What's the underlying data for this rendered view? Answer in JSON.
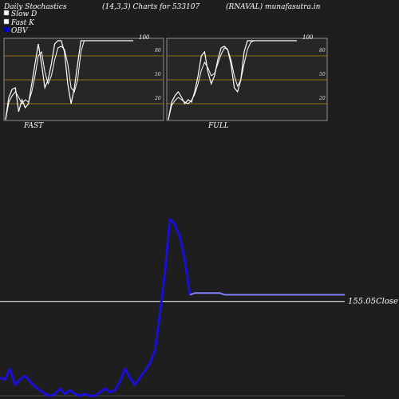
{
  "header": {
    "left": "Daily Stochastics",
    "middle": "(14,3,3) Charts for 533107",
    "right": "(RNAVAL) munafasutra.in"
  },
  "legend": [
    {
      "label": "Slow  D",
      "color": "#ffffff"
    },
    {
      "label": "Fast K",
      "color": "#ffffff"
    },
    {
      "label": "OBV",
      "color": "#0000cc"
    }
  ],
  "colors": {
    "background": "#1e1e1e",
    "panel": "#2a2a2a",
    "band_line": "#b8860b",
    "stoch_line": "#ffffff",
    "obv_line": "#1a0fd6",
    "close_line": "#ffffff",
    "close_marker": "#8080ff"
  },
  "chart_data": [
    {
      "type": "line",
      "name": "FAST",
      "panel_label": "FAST",
      "ylim": [
        0,
        100
      ],
      "yticks": [
        20,
        50,
        80
      ],
      "top_label": "100",
      "series": [
        {
          "name": "Slow  D",
          "values": [
            0,
            22,
            30,
            35,
            28,
            20,
            25,
            22,
            35,
            55,
            80,
            85,
            60,
            45,
            55,
            75,
            90,
            92,
            88,
            70,
            40,
            35,
            50,
            85,
            99,
            99,
            99,
            99,
            99,
            99,
            99,
            99,
            99,
            99,
            99,
            99,
            99,
            99,
            99,
            99
          ]
        },
        {
          "name": "Fast K",
          "values": [
            0,
            28,
            38,
            40,
            10,
            25,
            15,
            20,
            45,
            70,
            95,
            70,
            40,
            50,
            70,
            95,
            99,
            99,
            85,
            45,
            20,
            40,
            70,
            99,
            99,
            99,
            99,
            99,
            99,
            99,
            99,
            99,
            99,
            99,
            99,
            99,
            99,
            99,
            99,
            99
          ]
        }
      ]
    },
    {
      "type": "line",
      "name": "FULL",
      "panel_label": "FULL",
      "ylim": [
        0,
        100
      ],
      "yticks": [
        20,
        50,
        80
      ],
      "top_label": "100",
      "series": [
        {
          "name": "Slow  D",
          "values": [
            0,
            18,
            24,
            28,
            25,
            22,
            20,
            24,
            32,
            45,
            62,
            72,
            65,
            55,
            58,
            70,
            82,
            90,
            88,
            75,
            55,
            42,
            50,
            70,
            88,
            97,
            99,
            99,
            99,
            99,
            99,
            99,
            99,
            99,
            99,
            99,
            99,
            99,
            99,
            99
          ]
        },
        {
          "name": "Fast K",
          "values": [
            0,
            22,
            30,
            35,
            28,
            20,
            25,
            22,
            35,
            55,
            80,
            85,
            60,
            45,
            55,
            75,
            90,
            92,
            88,
            70,
            40,
            35,
            50,
            85,
            99,
            99,
            99,
            99,
            99,
            99,
            99,
            99,
            99,
            99,
            99,
            99,
            99,
            99,
            99,
            99
          ]
        }
      ]
    },
    {
      "type": "line",
      "name": "OBV",
      "ylim": [
        0,
        100
      ],
      "close_label": "155.05Close",
      "close_level": 55,
      "series": [
        {
          "name": "OBV",
          "values": [
            10,
            9,
            15,
            6,
            9,
            11,
            8,
            5,
            3,
            1,
            0,
            1,
            4,
            1,
            3,
            1,
            0,
            1,
            0,
            0,
            2,
            4,
            2,
            3,
            8,
            15,
            10,
            6,
            10,
            14,
            18,
            25,
            45,
            68,
            98,
            95,
            88,
            75,
            56,
            57,
            57,
            57,
            57,
            57,
            57,
            56,
            56,
            56,
            56,
            56,
            56,
            56,
            56,
            56,
            56,
            56,
            56,
            56,
            56,
            56,
            56,
            56,
            56,
            56,
            56,
            56,
            56,
            56,
            56,
            56
          ]
        }
      ]
    }
  ]
}
